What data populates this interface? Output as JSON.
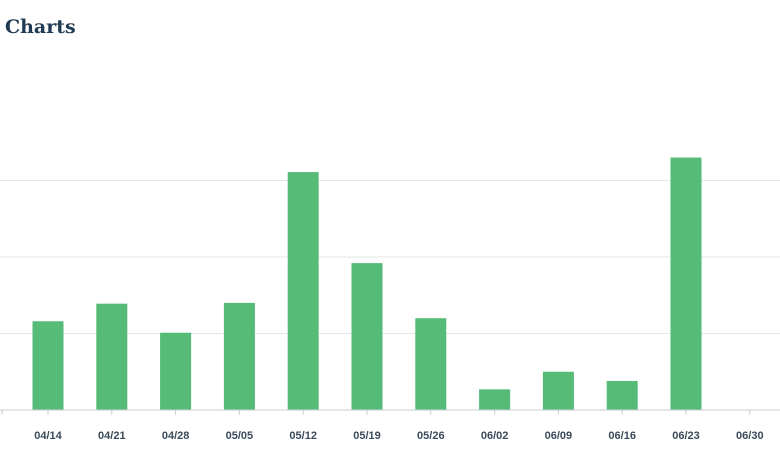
{
  "page": {
    "title": "Charts"
  },
  "chart_data": {
    "type": "bar",
    "categories": [
      "04/14",
      "04/21",
      "04/28",
      "05/05",
      "05/12",
      "05/19",
      "05/26",
      "06/02",
      "06/09",
      "06/16",
      "06/23",
      "06/30"
    ],
    "values": [
      1.16,
      1.39,
      1.01,
      1.4,
      3.11,
      1.92,
      1.2,
      0.27,
      0.5,
      0.38,
      3.3,
      0
    ],
    "ylim": [
      0,
      4.5
    ],
    "grid": true,
    "colors": {
      "bar": "#56bb77",
      "grid": "#e3e6ea",
      "axis": "#c9ced4"
    }
  }
}
